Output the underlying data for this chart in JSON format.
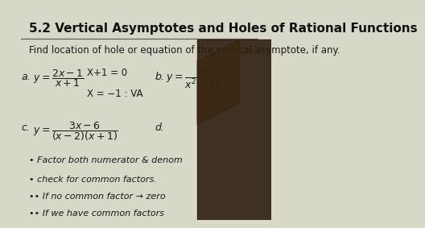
{
  "title": "5.2 Vertical Asymptotes and Holes of Rational Functions",
  "subtitle": "Find location of hole or equation of the vertical asymptote, if any.",
  "bg_color": "#d8d8c8",
  "text_color": "#1a1a1a",
  "title_color": "#111111",
  "title_fontsize": 11,
  "subtitle_fontsize": 8.5,
  "label_a": "a.",
  "work_a_line1": "X+1 = 0",
  "work_a_line2": "X = −1 : VA",
  "label_b": "b.",
  "label_c": "c.",
  "label_d": "d.",
  "bullet1": "• Factor both numerator & denom",
  "bullet2": "• check for common factors.",
  "bullet3": "•• If no common factor → zero",
  "bullet4": "•• If we have common factors",
  "line_color": "#555555",
  "hand_color": "#2a1a0a"
}
